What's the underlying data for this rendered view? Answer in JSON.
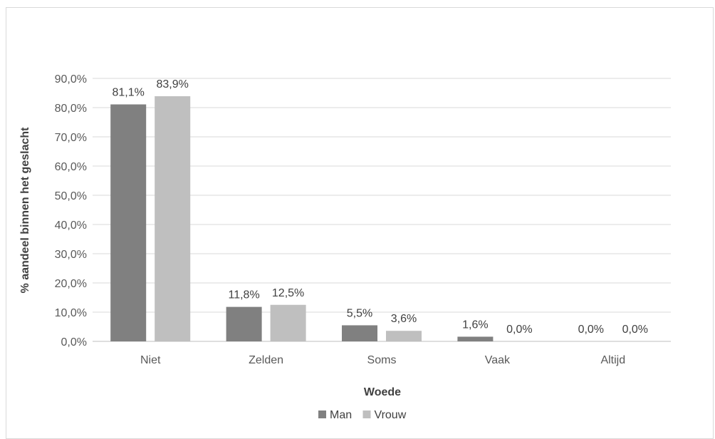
{
  "chart_data": {
    "type": "bar",
    "title": "",
    "xlabel": "Woede",
    "ylabel": "% aandeel binnen het geslacht",
    "categories": [
      "Niet",
      "Zelden",
      "Soms",
      "Vaak",
      "Altijd"
    ],
    "ylim": [
      0,
      90
    ],
    "yticks": [
      0,
      10,
      20,
      30,
      40,
      50,
      60,
      70,
      80,
      90
    ],
    "ytick_labels": [
      "0,0%",
      "10,0%",
      "20,0%",
      "30,0%",
      "40,0%",
      "50,0%",
      "60,0%",
      "70,0%",
      "80,0%",
      "90,0%"
    ],
    "grid": true,
    "legend_position": "bottom",
    "series": [
      {
        "name": "Man",
        "color": "#808080",
        "values": [
          81.1,
          11.8,
          5.5,
          1.6,
          0.0
        ],
        "labels": [
          "81,1%",
          "11,8%",
          "5,5%",
          "1,6%",
          "0,0%"
        ]
      },
      {
        "name": "Vrouw",
        "color": "#bfbfbf",
        "values": [
          83.9,
          12.5,
          3.6,
          0.0,
          0.0
        ],
        "labels": [
          "83,9%",
          "12,5%",
          "3,6%",
          "0,0%",
          "0,0%"
        ]
      }
    ]
  }
}
